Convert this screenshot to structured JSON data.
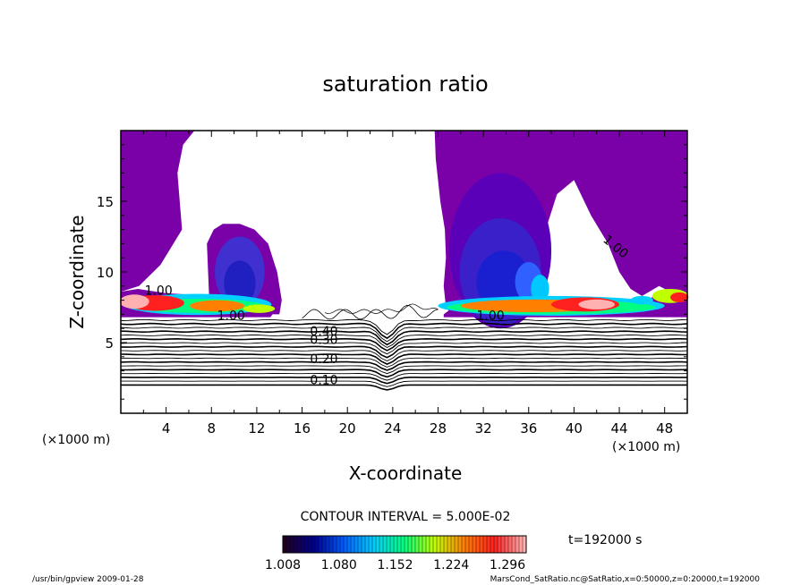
{
  "chart_data": {
    "type": "heatmap",
    "title": "saturation ratio",
    "xlabel": "X-coordinate",
    "ylabel": "Z-coordinate",
    "x_unit_left": "(×1000 m)",
    "x_unit_right": "(×1000 m)",
    "xlim": [
      0,
      50
    ],
    "ylim": [
      0,
      20
    ],
    "x_ticks": [
      4,
      8,
      12,
      16,
      20,
      24,
      28,
      32,
      36,
      40,
      44,
      48
    ],
    "x_tick_labels": [
      "4",
      "8",
      "12",
      "16",
      "20",
      "24",
      "28",
      "32",
      "36",
      "40",
      "44",
      "48"
    ],
    "y_ticks": [
      5,
      10,
      15
    ],
    "y_tick_labels": [
      "5",
      "10",
      "15"
    ],
    "contour_interval_text": "CONTOUR INTERVAL = 5.000E-02",
    "time_text": "t=192000 s",
    "colorbar": {
      "labels": [
        "1.008",
        "1.080",
        "1.152",
        "1.224",
        "1.296"
      ],
      "min": 1.008,
      "max": 1.32,
      "colors": [
        "#200020",
        "#000090",
        "#0060ff",
        "#00d0ff",
        "#00ff80",
        "#c0ff00",
        "#ff8000",
        "#ff2020",
        "#ffb0b0"
      ]
    },
    "contour_labels": [
      "0.10",
      "0.20",
      "0.30",
      "0.40",
      "1.00",
      "1.00",
      "1.00",
      "1.00"
    ],
    "contour_levels": [
      0.1,
      0.15,
      0.2,
      0.25,
      0.3,
      0.35,
      0.4,
      0.45,
      0.5,
      0.55,
      0.6,
      0.65,
      0.7,
      0.75,
      0.8,
      0.85,
      0.9,
      0.95
    ]
  },
  "footer": {
    "left": "/usr/bin/gpview  2009-01-28",
    "right": "MarsCond_SatRatio.nc@SatRatio,x=0:50000,z=0:20000,t=192000"
  },
  "colors": {
    "supersat": "#7a00a8",
    "deep_blue": "#2020c0",
    "frame": "#000000"
  }
}
